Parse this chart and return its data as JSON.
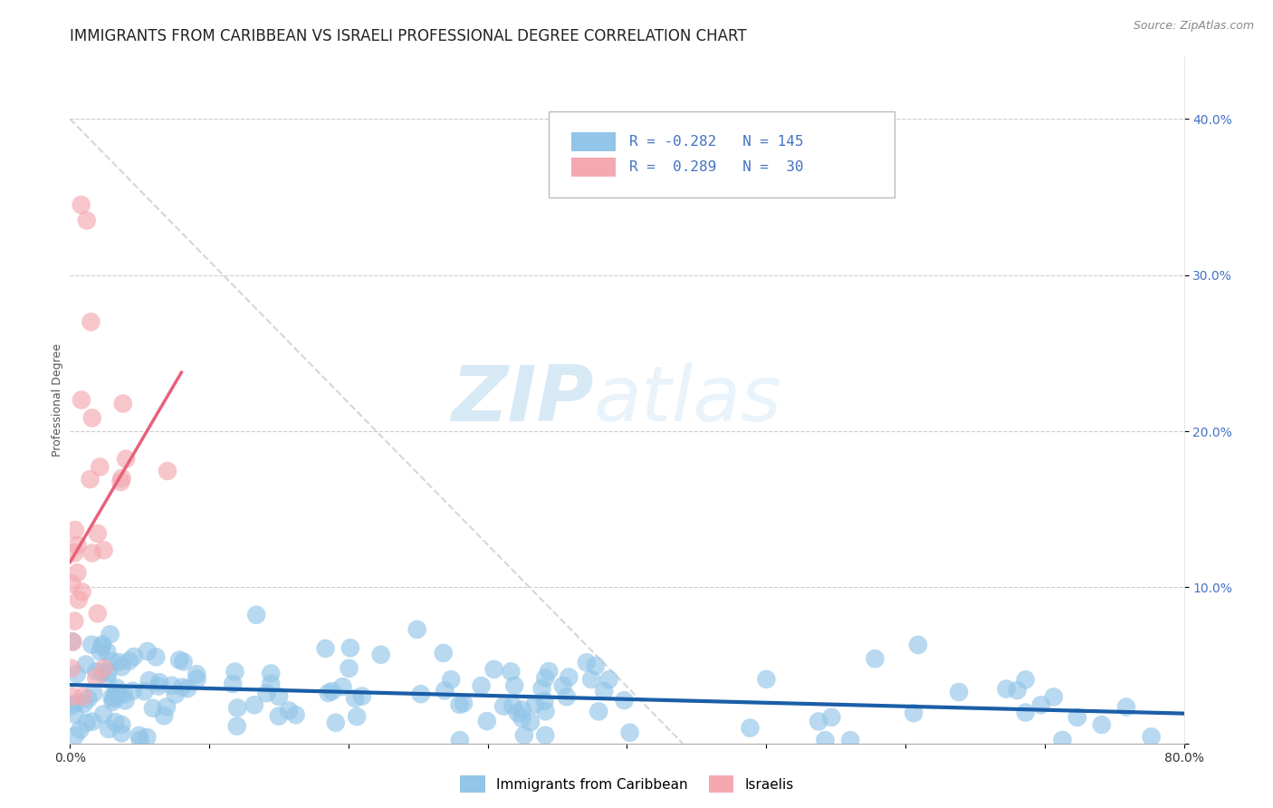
{
  "title": "IMMIGRANTS FROM CARIBBEAN VS ISRAELI PROFESSIONAL DEGREE CORRELATION CHART",
  "source": "Source: ZipAtlas.com",
  "ylabel": "Professional Degree",
  "xlim": [
    0.0,
    0.8
  ],
  "ylim": [
    0.0,
    0.44
  ],
  "blue_R": -0.282,
  "blue_N": 145,
  "pink_R": 0.289,
  "pink_N": 30,
  "blue_color": "#92C5E8",
  "pink_color": "#F4A8B0",
  "blue_line_color": "#1A5EA8",
  "pink_line_color": "#E8607A",
  "diag_color": "#CCCCCC",
  "grid_color": "#CCCCCC",
  "ytick_color": "#4472C4",
  "watermark_zip": "ZIP",
  "watermark_atlas": "atlas",
  "legend_label_blue": "Immigrants from Caribbean",
  "legend_label_pink": "Israelis",
  "title_fontsize": 12,
  "axis_label_fontsize": 9,
  "tick_fontsize": 10,
  "source_fontsize": 9
}
